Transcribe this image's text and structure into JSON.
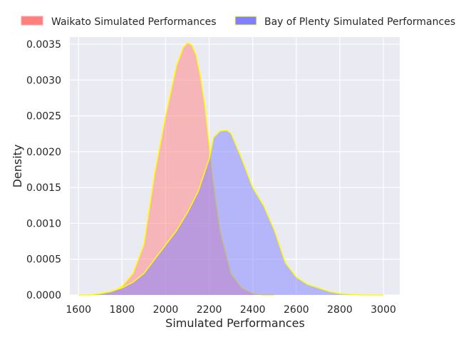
{
  "chart_data": {
    "type": "area",
    "title": "",
    "xlabel": "Simulated Performances",
    "ylabel": "Density",
    "xlim": [
      1560,
      3075
    ],
    "ylim": [
      0,
      0.0036
    ],
    "x_ticks": [
      1600,
      1800,
      2000,
      2200,
      2400,
      2600,
      2800,
      3000
    ],
    "y_ticks": [
      0.0,
      0.0005,
      0.001,
      0.0015,
      0.002,
      0.0025,
      0.003,
      0.0035
    ],
    "x_tick_labels": [
      "1600",
      "1800",
      "2000",
      "2200",
      "2400",
      "2600",
      "2800",
      "3000"
    ],
    "y_tick_labels": [
      "0.0000",
      "0.0005",
      "0.0010",
      "0.0015",
      "0.0020",
      "0.0025",
      "0.0030",
      "0.0035"
    ],
    "grid": true,
    "legend_position": "top",
    "series": [
      {
        "name": "Waikato Simulated Performances",
        "color": "#ff7f7f",
        "edge_color": "#ffff00",
        "x": [
          1650,
          1700,
          1750,
          1800,
          1850,
          1900,
          1950,
          2000,
          2050,
          2080,
          2100,
          2120,
          2140,
          2160,
          2180,
          2200,
          2220,
          2250,
          2300,
          2350,
          2400,
          2450,
          2500
        ],
        "y": [
          0.0,
          1e-05,
          4e-05,
          0.00012,
          0.0003,
          0.0007,
          0.0017,
          0.0025,
          0.0032,
          0.00345,
          0.00352,
          0.00349,
          0.00335,
          0.00305,
          0.00265,
          0.0021,
          0.00155,
          0.0009,
          0.0003,
          0.0001,
          2e-05,
          0.0,
          0.0
        ]
      },
      {
        "name": "Bay of Plenty Simulated Performances",
        "color": "#7f7fff",
        "edge_color": "#ffff00",
        "x": [
          1600,
          1650,
          1700,
          1750,
          1800,
          1850,
          1900,
          1950,
          2000,
          2050,
          2100,
          2150,
          2200,
          2220,
          2250,
          2280,
          2300,
          2350,
          2400,
          2450,
          2500,
          2550,
          2600,
          2650,
          2700,
          2750,
          2800,
          2850,
          2900,
          2950,
          3000
        ],
        "y": [
          0.0,
          0.0,
          2e-05,
          5e-05,
          0.0001,
          0.00018,
          0.0003,
          0.0005,
          0.0007,
          0.0009,
          0.00115,
          0.00145,
          0.0019,
          0.0022,
          0.00229,
          0.0023,
          0.00226,
          0.0019,
          0.0015,
          0.00125,
          0.0009,
          0.00045,
          0.00025,
          0.00015,
          0.0001,
          5e-05,
          2e-05,
          1e-05,
          0.0,
          0.0,
          0.0
        ]
      }
    ]
  }
}
